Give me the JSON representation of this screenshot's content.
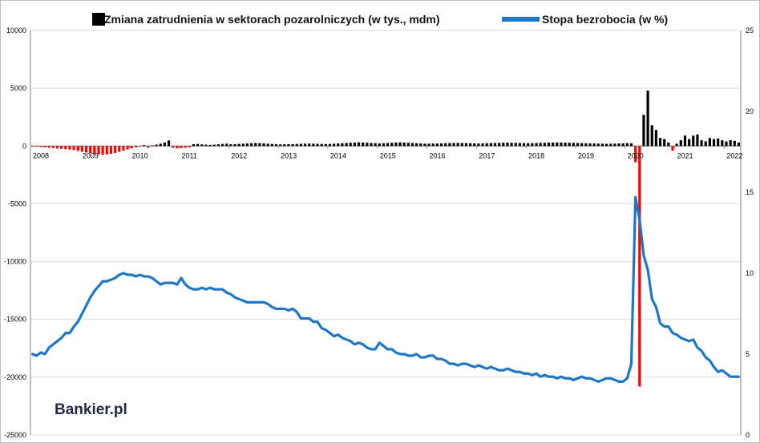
{
  "chart_data": {
    "type": "bar+line",
    "legend": [
      {
        "label": "Zmiana zatrudnienia w sektorach pozarolniczych (w tys., mdm)",
        "marker": "bar",
        "color": "#000000"
      },
      {
        "label": "Stopa bezrobocia (w %)",
        "marker": "line",
        "color": "#1f77c4"
      }
    ],
    "y_left": {
      "min": -25000,
      "max": 10000,
      "ticks": [
        10000,
        5000,
        0,
        -5000,
        -10000,
        -15000,
        -20000,
        -25000
      ],
      "tick_labels": [
        "10000",
        "5000",
        "0",
        "-5000",
        "-10000",
        "-15000",
        "-20000",
        "-25000"
      ]
    },
    "y_right": {
      "min": 0,
      "max": 25,
      "ticks": [
        25,
        20,
        15,
        10,
        5,
        0
      ],
      "tick_labels": [
        "25",
        "20",
        "15",
        "10",
        "5",
        "0"
      ]
    },
    "x_start": "2008-01",
    "year_labels": [
      "2008",
      "2009",
      "2010",
      "2011",
      "2012",
      "2013",
      "2014",
      "2015",
      "2016",
      "2017",
      "2018",
      "2019",
      "2020",
      "2021",
      "2022"
    ],
    "bar_colors": {
      "positive": "#000000",
      "negative": "#ff0000"
    },
    "line_color": "#1f77c4",
    "grid": true,
    "employment_change": [
      -30,
      -60,
      -90,
      -120,
      -150,
      -180,
      -210,
      -240,
      -270,
      -300,
      -350,
      -420,
      -500,
      -560,
      -620,
      -680,
      -720,
      -750,
      -720,
      -680,
      -600,
      -500,
      -400,
      -300,
      -200,
      -120,
      -60,
      80,
      -150,
      60,
      120,
      200,
      300,
      480,
      -150,
      -200,
      -180,
      -150,
      -120,
      160,
      180,
      140,
      120,
      100,
      120,
      150,
      180,
      200,
      150,
      160,
      180,
      200,
      220,
      240,
      260,
      250,
      230,
      200,
      180,
      160,
      140,
      150,
      160,
      170,
      180,
      190,
      200,
      210,
      200,
      190,
      180,
      170,
      180,
      200,
      220,
      240,
      260,
      280,
      300,
      320,
      300,
      280,
      260,
      240,
      220,
      240,
      260,
      280,
      300,
      320,
      300,
      280,
      260,
      240,
      220,
      200,
      200,
      210,
      220,
      230,
      240,
      250,
      260,
      270,
      260,
      250,
      240,
      230,
      220,
      230,
      240,
      250,
      260,
      270,
      280,
      290,
      280,
      270,
      260,
      250,
      240,
      250,
      260,
      270,
      280,
      290,
      300,
      310,
      300,
      290,
      280,
      270,
      260,
      250,
      240,
      230,
      220,
      210,
      200,
      190,
      200,
      210,
      220,
      230,
      250,
      230,
      -1400,
      -20800,
      2700,
      4800,
      1800,
      1400,
      700,
      600,
      300,
      -400,
      200,
      500,
      900,
      600,
      900,
      1000,
      500,
      400,
      700,
      600,
      650,
      500,
      400,
      500,
      450,
      300
    ],
    "unemployment_rate": [
      5.0,
      4.9,
      5.1,
      5.0,
      5.4,
      5.6,
      5.8,
      6.0,
      6.3,
      6.3,
      6.7,
      7.0,
      7.5,
      8.0,
      8.5,
      8.9,
      9.2,
      9.5,
      9.5,
      9.6,
      9.7,
      9.9,
      10.0,
      9.9,
      9.9,
      9.8,
      9.9,
      9.8,
      9.8,
      9.7,
      9.5,
      9.3,
      9.4,
      9.4,
      9.4,
      9.3,
      9.7,
      9.3,
      9.1,
      9.0,
      9.0,
      9.1,
      9.0,
      9.1,
      9.0,
      9.0,
      9.0,
      8.8,
      8.7,
      8.5,
      8.4,
      8.3,
      8.2,
      8.2,
      8.2,
      8.2,
      8.2,
      8.1,
      7.9,
      7.8,
      7.8,
      7.8,
      7.7,
      7.8,
      7.6,
      7.2,
      7.2,
      7.2,
      7.0,
      7.0,
      6.6,
      6.5,
      6.3,
      6.1,
      6.2,
      6.0,
      5.9,
      5.8,
      5.6,
      5.7,
      5.6,
      5.4,
      5.3,
      5.3,
      5.7,
      5.5,
      5.3,
      5.3,
      5.1,
      5.0,
      5.0,
      4.9,
      4.9,
      5.0,
      4.8,
      4.8,
      4.9,
      4.9,
      4.7,
      4.7,
      4.6,
      4.4,
      4.4,
      4.3,
      4.4,
      4.4,
      4.3,
      4.2,
      4.3,
      4.2,
      4.1,
      4.2,
      4.1,
      4.0,
      4.0,
      4.1,
      4.0,
      3.9,
      3.9,
      3.8,
      3.8,
      3.7,
      3.8,
      3.6,
      3.7,
      3.6,
      3.6,
      3.5,
      3.6,
      3.5,
      3.5,
      3.4,
      3.5,
      3.6,
      3.5,
      3.5,
      3.4,
      3.3,
      3.4,
      3.5,
      3.5,
      3.4,
      3.3,
      3.3,
      3.5,
      4.4,
      14.7,
      13.3,
      11.1,
      10.2,
      8.4,
      7.9,
      6.9,
      6.7,
      6.7,
      6.3,
      6.2,
      6.0,
      5.9,
      5.8,
      5.9,
      5.4,
      5.2,
      4.8,
      4.6,
      4.2,
      3.9,
      4.0,
      3.8,
      3.6,
      3.6,
      3.6
    ]
  },
  "brand": {
    "name": "Bankier.pl"
  },
  "colors": {
    "bar": "#000000",
    "negative_bar": "#ff0000",
    "line": "#1f77c4",
    "grid": "#d9d9d9"
  }
}
